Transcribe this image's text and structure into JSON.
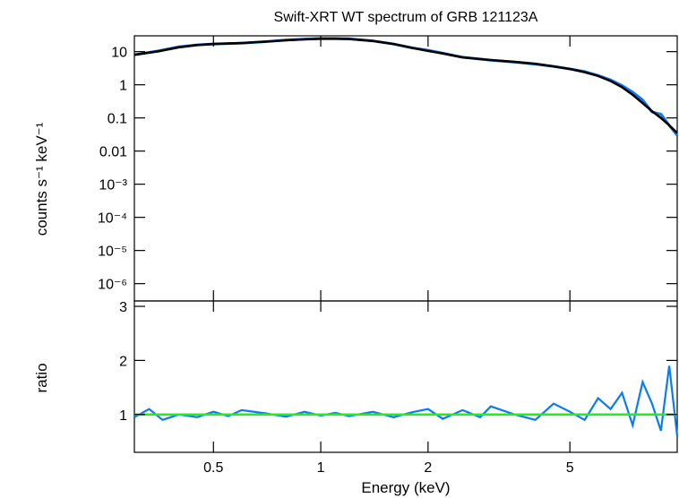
{
  "chart_data": [
    {
      "type": "line",
      "title": "Swift-XRT WT spectrum of GRB 121123A",
      "xlabel": "",
      "ylabel": "counts s⁻¹ keV⁻¹",
      "xscale": "log",
      "yscale": "log",
      "xlim": [
        0.3,
        10
      ],
      "ylim": [
        3e-07,
        30
      ],
      "grid": false,
      "y_tick_labels": [
        "10",
        "1",
        "0.1",
        "0.01",
        "10⁻³",
        "10⁻⁴",
        "10⁻⁵",
        "10⁻⁶"
      ],
      "y_tick_values": [
        10,
        1,
        0.1,
        0.01,
        0.001,
        0.0001,
        1e-05,
        1e-06
      ],
      "series": [
        {
          "color": "#0a7af5",
          "x": [
            0.3,
            0.35,
            0.4,
            0.45,
            0.5,
            0.6,
            0.7,
            0.8,
            0.9,
            1.0,
            1.1,
            1.2,
            1.4,
            1.6,
            1.8,
            2.0,
            2.2,
            2.5,
            3.0,
            3.5,
            4.0,
            4.5,
            5.0,
            5.5,
            6.0,
            6.5,
            7.0,
            7.5,
            8.0,
            8.5,
            9.0,
            9.5,
            10.0
          ],
          "y": [
            8.0,
            10.5,
            14.0,
            16.0,
            17.0,
            18.0,
            20.0,
            22.5,
            24.0,
            25.0,
            25.0,
            24.5,
            21.0,
            17.0,
            13.0,
            11.0,
            9.0,
            6.8,
            5.5,
            4.8,
            4.2,
            3.6,
            3.0,
            2.5,
            1.9,
            1.4,
            0.95,
            0.6,
            0.35,
            0.15,
            0.13,
            0.06,
            0.03
          ]
        },
        {
          "color": "#000000",
          "x": [
            0.3,
            0.35,
            0.4,
            0.45,
            0.5,
            0.6,
            0.7,
            0.8,
            0.9,
            1.0,
            1.1,
            1.2,
            1.4,
            1.6,
            1.8,
            2.0,
            2.2,
            2.5,
            3.0,
            3.5,
            4.0,
            4.5,
            5.0,
            5.5,
            6.0,
            6.5,
            7.0,
            7.5,
            8.0,
            8.5,
            9.0,
            9.5,
            10.0
          ],
          "y": [
            8.0,
            10.2,
            13.5,
            15.8,
            17.0,
            18.2,
            20.0,
            22.0,
            23.5,
            24.5,
            24.5,
            24.0,
            21.0,
            17.0,
            13.0,
            10.5,
            8.8,
            6.7,
            5.6,
            4.9,
            4.3,
            3.6,
            3.0,
            2.4,
            1.85,
            1.3,
            0.85,
            0.5,
            0.28,
            0.16,
            0.1,
            0.06,
            0.035
          ]
        }
      ]
    },
    {
      "type": "line",
      "title": "",
      "xlabel": "Energy (keV)",
      "ylabel": "ratio",
      "xscale": "log",
      "xlim": [
        0.3,
        10
      ],
      "ylim": [
        0.3,
        3.1
      ],
      "grid": false,
      "x_tick_labels": [
        "0.5",
        "1",
        "2",
        "5"
      ],
      "x_tick_values": [
        0.5,
        1,
        2,
        5
      ],
      "y_tick_labels": [
        "1",
        "2",
        "3"
      ],
      "y_tick_values": [
        1,
        2,
        3
      ],
      "series": [
        {
          "color": "#0a7af5",
          "x": [
            0.3,
            0.33,
            0.36,
            0.4,
            0.45,
            0.5,
            0.55,
            0.6,
            0.7,
            0.8,
            0.9,
            1.0,
            1.1,
            1.2,
            1.4,
            1.6,
            1.8,
            2.0,
            2.2,
            2.5,
            2.8,
            3.0,
            3.5,
            4.0,
            4.5,
            5.0,
            5.5,
            6.0,
            6.5,
            7.0,
            7.5,
            8.0,
            8.5,
            9.0,
            9.5,
            10.0
          ],
          "y": [
            0.95,
            1.1,
            0.9,
            1.0,
            0.95,
            1.05,
            0.97,
            1.08,
            1.02,
            0.96,
            1.05,
            0.98,
            1.03,
            0.97,
            1.05,
            0.95,
            1.04,
            1.1,
            0.92,
            1.08,
            0.95,
            1.15,
            1.0,
            0.9,
            1.2,
            1.05,
            0.9,
            1.3,
            1.1,
            1.4,
            0.8,
            1.6,
            1.2,
            0.7,
            1.9,
            0.6
          ]
        },
        {
          "color": "#22ee22",
          "x": [
            0.3,
            10.0
          ],
          "y": [
            1.0,
            1.0
          ]
        }
      ]
    }
  ]
}
